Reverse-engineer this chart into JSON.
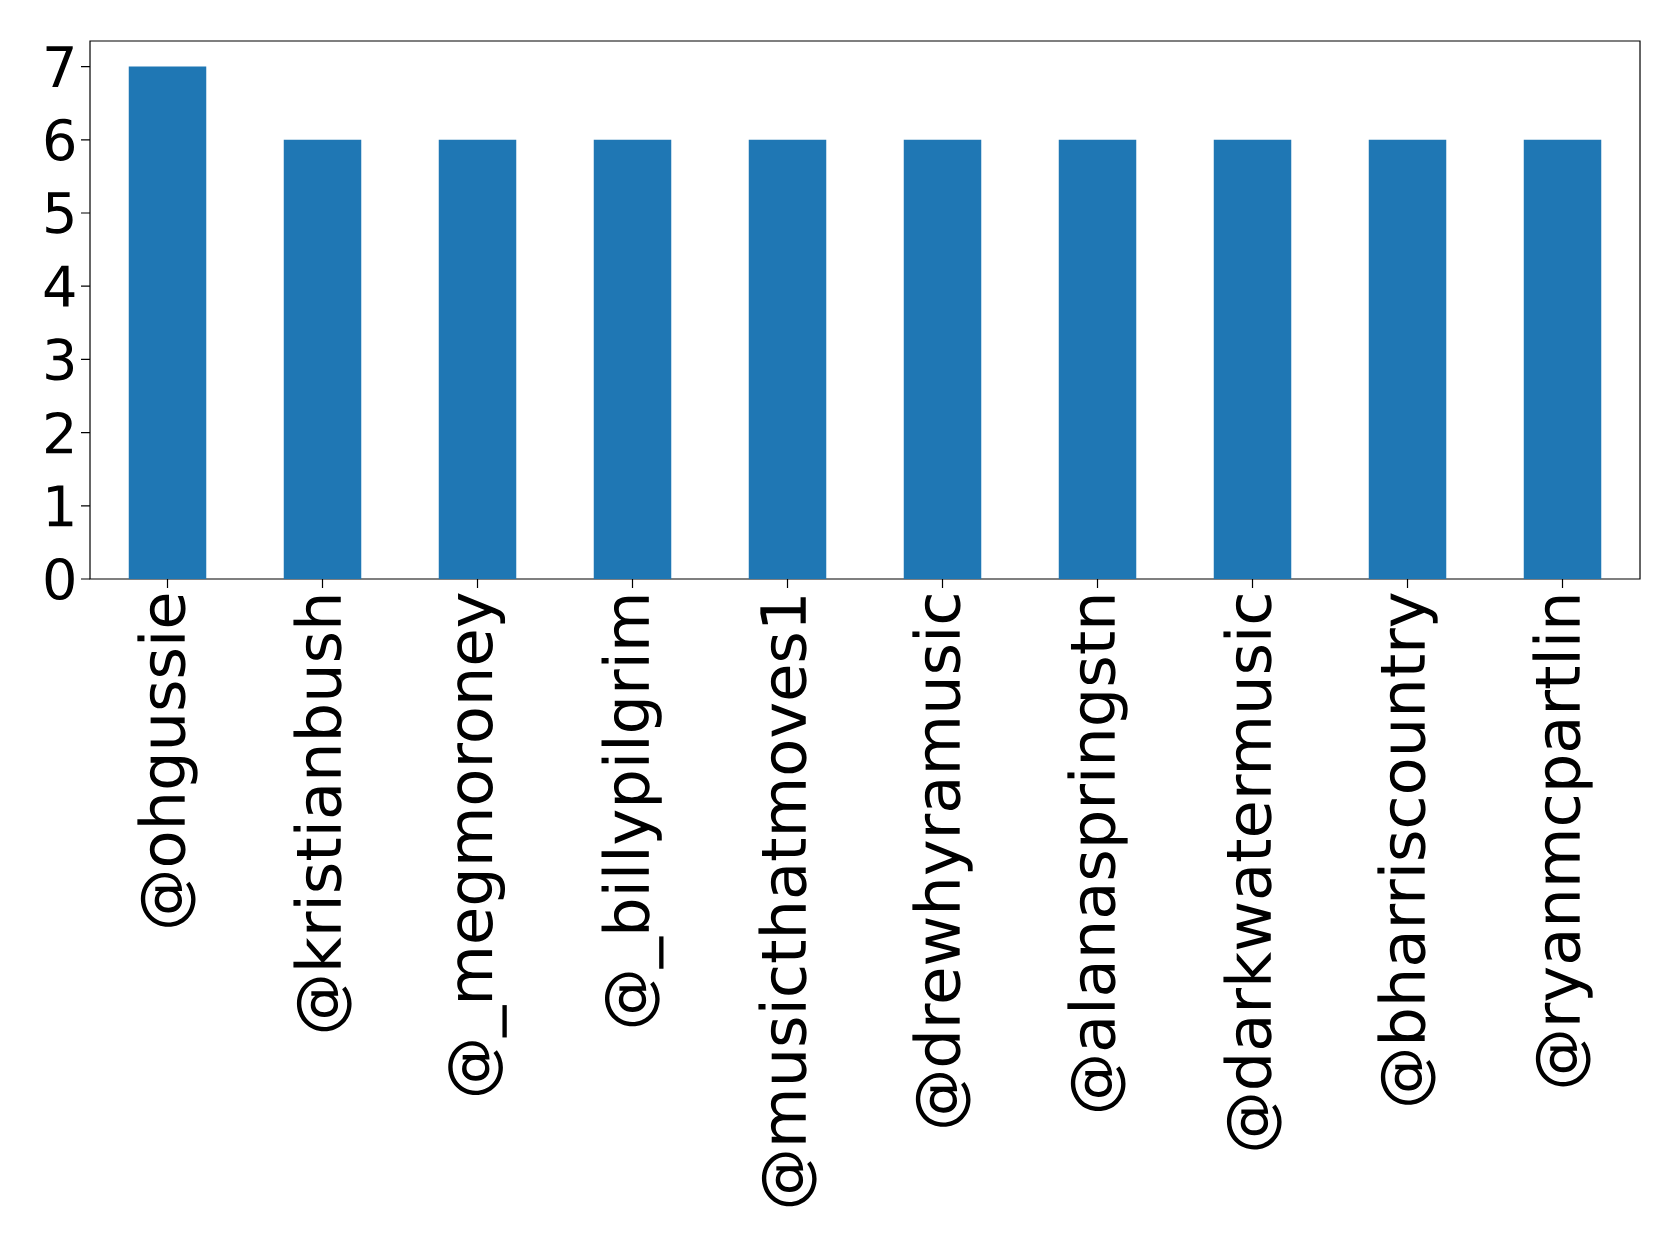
{
  "chart_data": {
    "type": "bar",
    "categories": [
      "@ohgussie",
      "@kristianbush",
      "@_megmoroney",
      "@_billypilgrim",
      "@musicthatmoves1",
      "@drewhyramusic",
      "@alanaspringstn",
      "@darkwatermusic",
      "@bharriscountry",
      "@ryanmcpartlin"
    ],
    "values": [
      7,
      6,
      6,
      6,
      6,
      6,
      6,
      6,
      6,
      6
    ],
    "color": "#1f77b4",
    "ylim": [
      0,
      7.35
    ],
    "yticks": [
      0,
      1,
      2,
      3,
      4,
      5,
      6,
      7
    ],
    "grid": false
  }
}
